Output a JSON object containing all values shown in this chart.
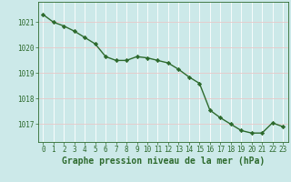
{
  "x": [
    0,
    1,
    2,
    3,
    4,
    5,
    6,
    7,
    8,
    9,
    10,
    11,
    12,
    13,
    14,
    15,
    16,
    17,
    18,
    19,
    20,
    21,
    22,
    23
  ],
  "y": [
    1021.3,
    1021.0,
    1020.85,
    1020.65,
    1020.4,
    1020.15,
    1019.65,
    1019.5,
    1019.5,
    1019.65,
    1019.6,
    1019.5,
    1019.4,
    1019.15,
    1018.85,
    1018.6,
    1017.55,
    1017.25,
    1017.0,
    1016.75,
    1016.65,
    1016.65,
    1017.05,
    1016.9
  ],
  "line_color": "#2d6a2d",
  "marker": "D",
  "marker_size": 2.2,
  "bg_color": "#cce9e9",
  "grid_color": "#c8dede",
  "axis_color": "#2d6a2d",
  "xlabel": "Graphe pression niveau de la mer (hPa)",
  "xlabel_fontsize": 7,
  "ylabel_ticks": [
    1017,
    1018,
    1019,
    1020,
    1021
  ],
  "ylim": [
    1016.3,
    1021.8
  ],
  "xlim": [
    -0.5,
    23.5
  ],
  "xticks": [
    0,
    1,
    2,
    3,
    4,
    5,
    6,
    7,
    8,
    9,
    10,
    11,
    12,
    13,
    14,
    15,
    16,
    17,
    18,
    19,
    20,
    21,
    22,
    23
  ],
  "tick_fontsize": 5.5,
  "linewidth": 1.0
}
